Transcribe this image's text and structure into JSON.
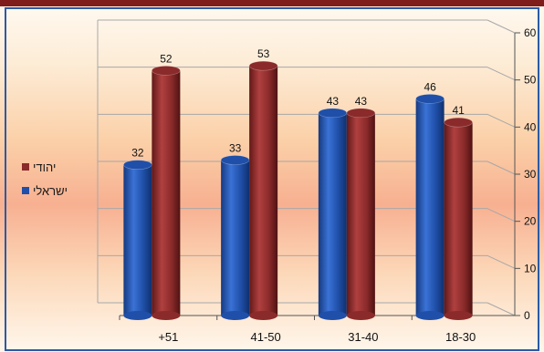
{
  "colors": {
    "top_band": "#7f1d1d",
    "frame": "#2b5aa6",
    "series": [
      "#1f4fa8",
      "#8b2a2a"
    ]
  },
  "chart_data": {
    "type": "bar",
    "categories": [
      "+51",
      "41-50",
      "31-40",
      "18-30"
    ],
    "series": [
      {
        "name": "ישראלי",
        "values": [
          32,
          33,
          43,
          46
        ]
      },
      {
        "name": "יהודי",
        "values": [
          52,
          53,
          43,
          41
        ]
      }
    ],
    "ylim": [
      0,
      60
    ],
    "yticks": [
      0,
      10,
      20,
      30,
      40,
      50,
      60
    ],
    "y_axis_side": "right",
    "grid": true,
    "legend_position": "left",
    "title": "",
    "xlabel": "",
    "ylabel": ""
  }
}
